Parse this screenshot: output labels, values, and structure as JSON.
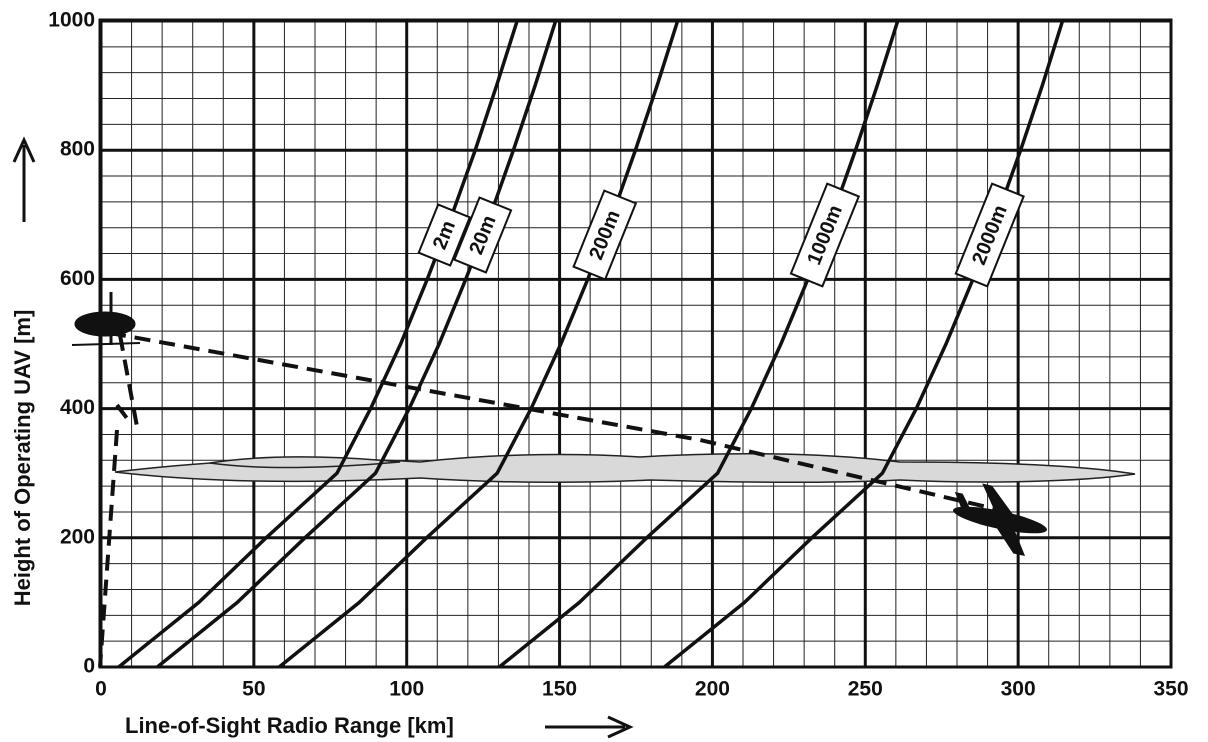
{
  "chart_data": {
    "type": "line",
    "x_label": "Line-of-Sight Radio Range [km]",
    "y_label": "Height of Operating UAV [m]",
    "xlim": [
      0,
      350
    ],
    "ylim": [
      0,
      1000
    ],
    "xticks": [
      0,
      50,
      100,
      150,
      200,
      250,
      300,
      350
    ],
    "yticks": [
      0,
      200,
      400,
      600,
      800,
      1000
    ],
    "grid": true,
    "minor_grid_divisions": 5,
    "series": [
      {
        "name": "2m",
        "color": "#111111",
        "x": [
          5.8,
          32.0,
          54.0,
          77.2,
          88.2,
          98.0,
          106.7,
          114.8,
          122.4,
          129.4,
          136.1
        ],
        "values": [
          0,
          100,
          200,
          300,
          400,
          500,
          600,
          700,
          800,
          900,
          1000
        ]
      },
      {
        "name": "20m",
        "color": "#111111",
        "x": [
          18.4,
          44.6,
          66.7,
          89.8,
          100.8,
          110.6,
          119.3,
          127.4,
          134.9,
          142.0,
          148.7
        ],
        "values": [
          0,
          100,
          200,
          300,
          400,
          500,
          600,
          700,
          800,
          900,
          1000
        ]
      },
      {
        "name": "200m",
        "color": "#111111",
        "x": [
          58.3,
          84.5,
          106.5,
          129.6,
          140.7,
          150.4,
          159.2,
          167.3,
          174.8,
          181.9,
          188.6
        ],
        "values": [
          0,
          100,
          200,
          300,
          400,
          500,
          600,
          700,
          800,
          900,
          1000
        ]
      },
      {
        "name": "1000m",
        "color": "#111111",
        "x": [
          130.3,
          156.5,
          178.5,
          201.7,
          212.7,
          222.4,
          231.2,
          239.3,
          246.8,
          253.9,
          260.6
        ],
        "values": [
          0,
          100,
          200,
          300,
          400,
          500,
          600,
          700,
          800,
          900,
          1000
        ]
      },
      {
        "name": "2000m",
        "color": "#111111",
        "x": [
          184.3,
          210.5,
          232.5,
          255.6,
          266.7,
          276.4,
          285.2,
          293.2,
          300.8,
          307.9,
          314.5
        ],
        "values": [
          0,
          100,
          200,
          300,
          400,
          500,
          600,
          700,
          800,
          900,
          1000
        ]
      }
    ]
  }
}
